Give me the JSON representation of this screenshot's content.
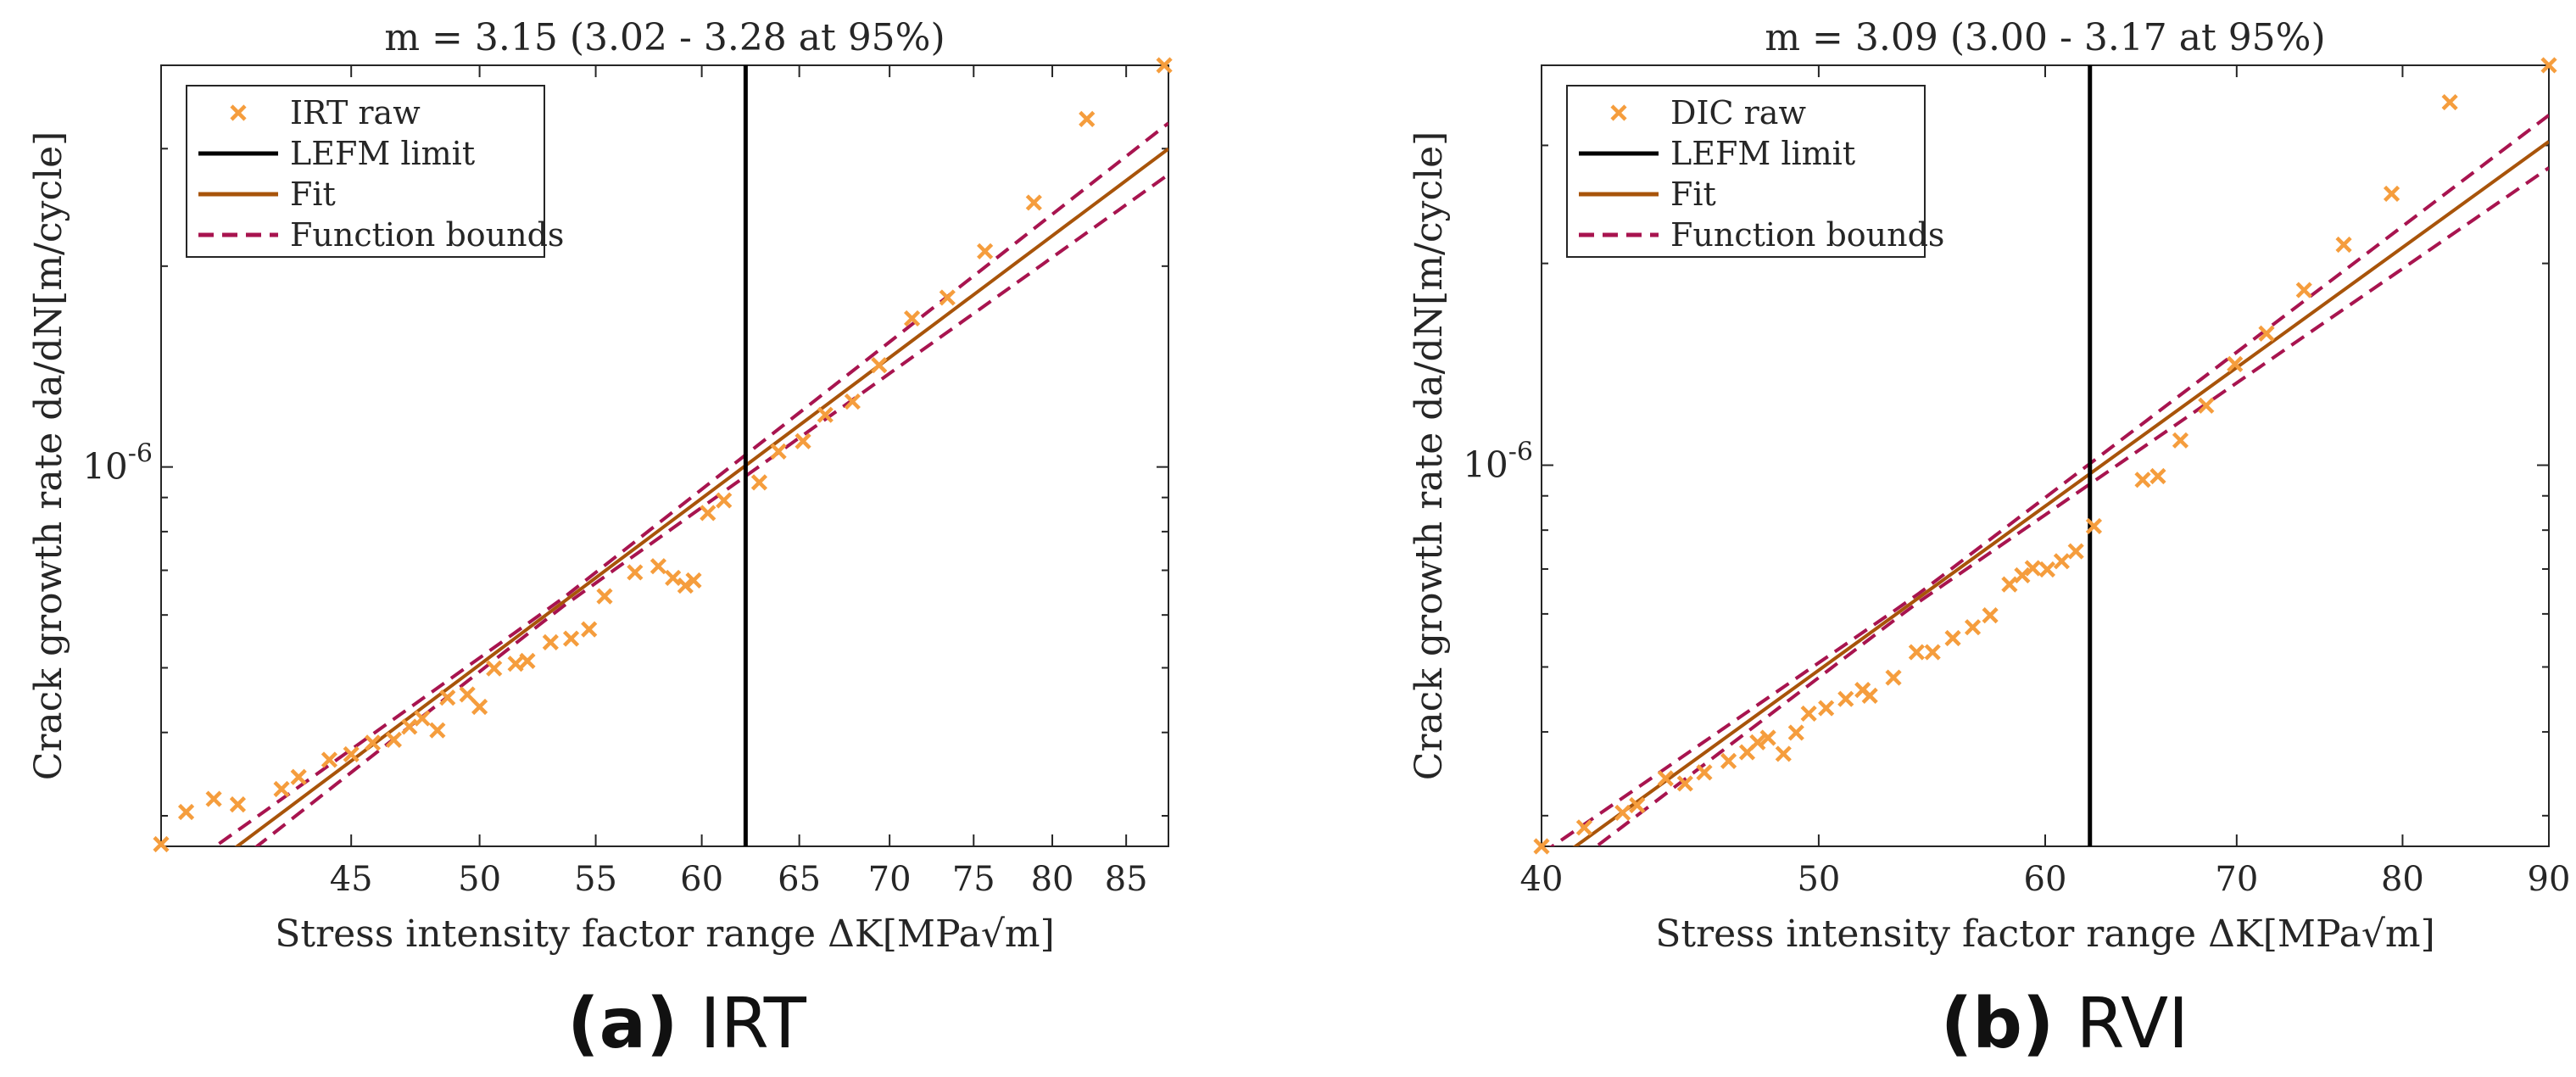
{
  "chart_data": [
    {
      "type": "scatter+line",
      "panel": "a",
      "title": "m = 3.15 (3.02 - 3.28 at 95%)",
      "xlabel": "Stress intensity factor range ΔK[MPa√m]",
      "ylabel": "Crack growth rate da/dN[m/cycle]",
      "xscale": "log",
      "yscale": "log",
      "xlim": [
        38.5,
        88
      ],
      "ylim": [
        2.7e-07,
        4e-06
      ],
      "xticks": [
        45,
        50,
        55,
        60,
        65,
        70,
        75,
        80,
        85
      ],
      "xtick_labels": [
        "45",
        "50",
        "55",
        "60",
        "65",
        "70",
        "75",
        "80",
        "85"
      ],
      "ytick_label": "10^-6",
      "ytick_label_base": "10",
      "ytick_label_exp": "-6",
      "lefm_limit": 62.2,
      "legend": [
        "IRT raw",
        "LEFM limit",
        "Fit",
        "Function bounds"
      ],
      "legend_position": "top-left",
      "fit": {
        "m": 3.15,
        "x_at_1e6": 62.1,
        "bound_offset_log10": 0.018
      },
      "raw": {
        "name": "IRT raw",
        "x": [
          38.5,
          39.3,
          40.2,
          41.0,
          42.5,
          43.1,
          44.2,
          45.0,
          45.8,
          46.6,
          47.2,
          47.7,
          48.3,
          48.7,
          49.5,
          50.0,
          50.6,
          51.5,
          52.0,
          53.0,
          53.9,
          54.7,
          55.4,
          56.8,
          57.9,
          58.6,
          59.2,
          59.6,
          60.3,
          61.1,
          62.9,
          63.9,
          65.2,
          66.4,
          67.9,
          69.4,
          71.3,
          73.4,
          75.7,
          78.8,
          82.3,
          87.7
        ],
        "y": [
          2.72e-07,
          3.04e-07,
          3.18e-07,
          3.12e-07,
          3.29e-07,
          3.43e-07,
          3.64e-07,
          3.71e-07,
          3.86e-07,
          3.9e-07,
          4.08e-07,
          4.2e-07,
          4.03e-07,
          4.51e-07,
          4.56e-07,
          4.37e-07,
          4.99e-07,
          5.07e-07,
          5.12e-07,
          5.46e-07,
          5.53e-07,
          5.71e-07,
          6.4e-07,
          6.95e-07,
          7.1e-07,
          6.82e-07,
          6.64e-07,
          6.76e-07,
          8.53e-07,
          8.91e-07,
          9.48e-07,
          1.055e-06,
          1.093e-06,
          1.197e-06,
          1.253e-06,
          1.421e-06,
          1.67e-06,
          1.794e-06,
          2.105e-06,
          2.49e-06,
          3.323e-06,
          4e-06
        ]
      }
    },
    {
      "type": "scatter+line",
      "panel": "b",
      "title": "m = 3.09 (3.00 - 3.17 at 95%)",
      "xlabel": "Stress intensity factor range ΔK[MPa√m]",
      "ylabel": "Crack growth rate da/dN[m/cycle]",
      "xscale": "log",
      "yscale": "log",
      "xlim": [
        40,
        90
      ],
      "ylim": [
        2.7e-07,
        3.95e-06
      ],
      "xticks": [
        40,
        50,
        60,
        70,
        80,
        90
      ],
      "xtick_labels": [
        "40",
        "50",
        "60",
        "70",
        "80",
        "90"
      ],
      "ytick_label": "10^-6",
      "ytick_label_base": "10",
      "ytick_label_exp": "-6",
      "lefm_limit": 62.2,
      "legend": [
        "DIC raw",
        "LEFM limit",
        "Fit",
        "Function bounds"
      ],
      "legend_position": "top-left",
      "fit": {
        "m": 3.09,
        "x_at_1e6": 62.8,
        "bound_offset_log10": 0.018
      },
      "raw": {
        "name": "DIC raw",
        "x": [
          40.0,
          41.4,
          42.7,
          43.2,
          44.2,
          44.9,
          45.6,
          46.5,
          47.2,
          47.6,
          48.0,
          48.6,
          49.1,
          49.6,
          50.3,
          51.1,
          51.8,
          52.1,
          53.1,
          54.1,
          54.8,
          55.7,
          56.6,
          57.4,
          58.3,
          58.9,
          59.4,
          60.1,
          60.8,
          61.5,
          62.4,
          64.9,
          65.7,
          66.9,
          68.3,
          69.9,
          71.7,
          73.9,
          76.3,
          79.3,
          83.1,
          90.0
        ],
        "y": [
          2.7e-07,
          2.88e-07,
          3.03e-07,
          3.11e-07,
          3.41e-07,
          3.35e-07,
          3.48e-07,
          3.62e-07,
          3.73e-07,
          3.86e-07,
          3.92e-07,
          3.71e-07,
          3.99e-07,
          4.26e-07,
          4.34e-07,
          4.48e-07,
          4.62e-07,
          4.53e-07,
          4.82e-07,
          5.26e-07,
          5.26e-07,
          5.52e-07,
          5.73e-07,
          5.97e-07,
          6.64e-07,
          6.85e-07,
          7.02e-07,
          6.99e-07,
          7.19e-07,
          7.44e-07,
          8.11e-07,
          9.51e-07,
          9.63e-07,
          1.089e-06,
          1.227e-06,
          1.415e-06,
          1.572e-06,
          1.825e-06,
          2.133e-06,
          2.541e-06,
          3.479e-06,
          3.951e-06
        ]
      }
    }
  ],
  "colors": {
    "raw": "#f59d3d",
    "lefm": "#000000",
    "fit": "#a8540a",
    "bounds": "#a8144f"
  },
  "captions": [
    {
      "letter": "(a)",
      "text": " IRT"
    },
    {
      "letter": "(b)",
      "text": " RVI"
    }
  ]
}
